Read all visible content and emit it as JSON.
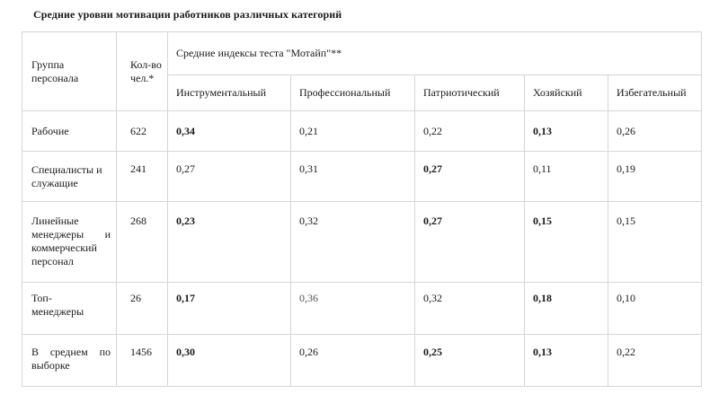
{
  "title": "Средние уровни мотивации работников различных категорий",
  "table": {
    "group_header": "Группа персонала",
    "count_header": "Кол-во чел.*",
    "indices_header": "Средние индексы теста \"Мотайп\"**",
    "columns": [
      "Инструментальный",
      "Профессиональный",
      "Патриотический",
      "Хозяйский",
      "Избегательный"
    ],
    "rows": [
      {
        "group": "Рабочие",
        "count": "622",
        "values": [
          "0,34",
          "0,21",
          "0,22",
          "0,13",
          "0,26"
        ]
      },
      {
        "group": "Специалисты и служащие",
        "count": "241",
        "values": [
          "0,27",
          "0,31",
          "0,27",
          "0,11",
          "0,19"
        ]
      },
      {
        "group": "Линейные менеджеры и коммерческий персонал",
        "count": "268",
        "values": [
          "0,23",
          "0,32",
          "0,27",
          "0,15",
          "0,15"
        ]
      },
      {
        "group": "Топ-менеджеры",
        "count": "26",
        "values": [
          "0,17",
          "0,36",
          "0,32",
          "0,18",
          "0,10"
        ]
      },
      {
        "group": "В среднем по выборке",
        "count": "1456",
        "values": [
          "0,30",
          "0,26",
          "0,25",
          "0,13",
          "0,22"
        ]
      }
    ]
  }
}
